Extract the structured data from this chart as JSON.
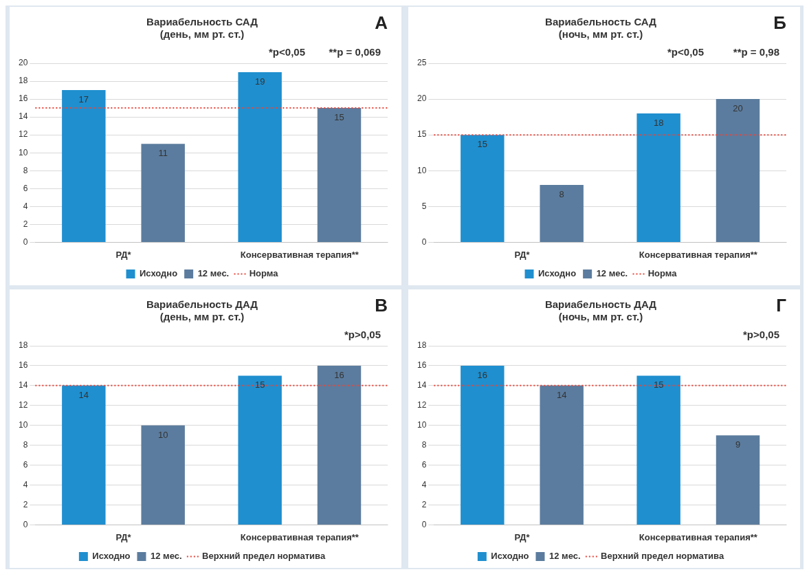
{
  "chart_data": [
    {
      "type": "bar",
      "title": "Вариабельность САД\n(день, мм рт. ст.)",
      "categories": [
        "РД*",
        "Консервативная терапия**"
      ],
      "series": [
        {
          "name": "Исходно",
          "color": "#1f8fcf",
          "values": [
            17,
            19
          ]
        },
        {
          "name": "12 мес.",
          "color": "#5b7c9e",
          "values": [
            11,
            15
          ]
        }
      ],
      "ylim": [
        0,
        20
      ],
      "yticks": [
        0,
        2,
        4,
        6,
        8,
        10,
        12,
        14,
        16,
        18,
        20
      ],
      "grid": "y",
      "legend": "bottom",
      "data_labels": true,
      "ref_lines": [
        {
          "axis": "y",
          "value": 15,
          "label": "Норма",
          "color": "#e8463a",
          "line_style": "dotted"
        }
      ],
      "annotations": [
        "А",
        "*p<0,05",
        "**p = 0,069"
      ]
    },
    {
      "type": "bar",
      "title": "Вариабельность САД\n(ночь, мм рт. ст.)",
      "categories": [
        "РД*",
        "Консервативная терапия**"
      ],
      "series": [
        {
          "name": "Исходно",
          "color": "#1f8fcf",
          "values": [
            15,
            18
          ]
        },
        {
          "name": "12 мес.",
          "color": "#5b7c9e",
          "values": [
            8,
            20
          ]
        }
      ],
      "ylim": [
        0,
        25
      ],
      "yticks": [
        0,
        5,
        10,
        15,
        20,
        25
      ],
      "grid": "y",
      "legend": "bottom",
      "data_labels": true,
      "ref_lines": [
        {
          "axis": "y",
          "value": 15,
          "label": "Норма",
          "color": "#e8463a",
          "line_style": "dotted"
        }
      ],
      "annotations": [
        "Б",
        "*p<0,05",
        "**p = 0,98"
      ]
    },
    {
      "type": "bar",
      "title": "Вариабельность ДАД\n(день, мм рт. ст.)",
      "categories": [
        "РД*",
        "Консервативная терапия**"
      ],
      "series": [
        {
          "name": "Исходно",
          "color": "#1f8fcf",
          "values": [
            14,
            15
          ]
        },
        {
          "name": "12 мес.",
          "color": "#5b7c9e",
          "values": [
            10,
            16
          ]
        }
      ],
      "ylim": [
        0,
        18
      ],
      "yticks": [
        0,
        2,
        4,
        6,
        8,
        10,
        12,
        14,
        16,
        18
      ],
      "grid": "y",
      "legend": "bottom",
      "data_labels": true,
      "ref_lines": [
        {
          "axis": "y",
          "value": 14,
          "label": "Верхний предел норматива",
          "color": "#e8463a",
          "line_style": "dotted"
        }
      ],
      "annotations": [
        "В",
        "*p>0,05"
      ]
    },
    {
      "type": "bar",
      "title": "Вариабельность ДАД\n(ночь, мм рт. ст.)",
      "categories": [
        "РД*",
        "Консервативная терапия**"
      ],
      "series": [
        {
          "name": "Исходно",
          "color": "#1f8fcf",
          "values": [
            16,
            15
          ]
        },
        {
          "name": "12 мес.",
          "color": "#5b7c9e",
          "values": [
            14,
            9
          ]
        }
      ],
      "ylim": [
        0,
        18
      ],
      "yticks": [
        0,
        2,
        4,
        6,
        8,
        10,
        12,
        14,
        16,
        18
      ],
      "grid": "y",
      "legend": "bottom",
      "data_labels": true,
      "ref_lines": [
        {
          "axis": "y",
          "value": 14,
          "label": "Верхний предел норматива",
          "color": "#e8463a",
          "line_style": "dotted"
        }
      ],
      "annotations": [
        "Г",
        "*p>0,05"
      ]
    }
  ]
}
